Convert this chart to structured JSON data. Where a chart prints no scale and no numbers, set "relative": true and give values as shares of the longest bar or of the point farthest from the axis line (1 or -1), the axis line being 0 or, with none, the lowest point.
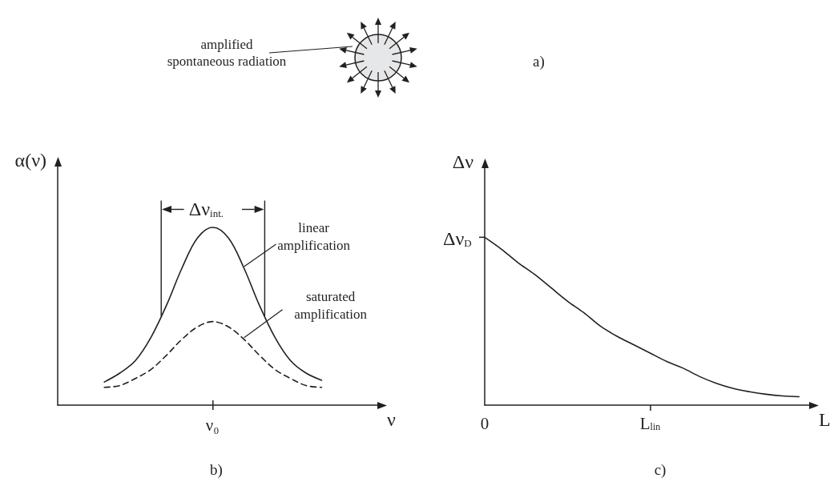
{
  "chart_data": [
    {
      "type": "other",
      "title": "a)",
      "annotations": [
        "amplified spontaneous radiation"
      ]
    },
    {
      "type": "line",
      "title": "b)",
      "xlabel": "ν",
      "ylabel": "α(ν)",
      "relative": true,
      "categories": [
        null,
        null,
        null,
        null,
        null,
        null,
        null,
        null,
        null,
        null,
        null,
        null,
        null,
        null,
        null,
        null,
        null,
        null,
        null,
        null,
        null,
        null
      ],
      "marker": "none",
      "annotations": [
        "Δν$_{int.}$",
        "ν₀"
      ],
      "series": [
        {
          "name": "linear amplification",
          "color": "#231f20",
          "line_style": "solid",
          "values": [
            null,
            null,
            null,
            0.13,
            0.18,
            0.25,
            0.38,
            0.56,
            0.77,
            0.94,
            1,
            0.94,
            0.77,
            0.56,
            0.38,
            0.25,
            0.18,
            0.14,
            null,
            null,
            null,
            null
          ]
        },
        {
          "name": "saturated amplification",
          "color": "#231f20",
          "line_style": "dashed",
          "values": [
            null,
            null,
            null,
            0.1,
            0.11,
            0.15,
            0.2,
            0.28,
            0.37,
            0.44,
            0.47,
            0.44,
            0.37,
            0.28,
            0.2,
            0.15,
            0.11,
            0.1,
            null,
            null,
            null,
            null
          ]
        }
      ]
    },
    {
      "type": "line",
      "title": "c)",
      "xlabel": "L",
      "ylabel": "Δν",
      "relative": true,
      "categories": [
        "0",
        null,
        null,
        null,
        null,
        null,
        null,
        null,
        null,
        null,
        "L$_{lin}$",
        null,
        null,
        null,
        null,
        null,
        null,
        null,
        null,
        null,
        null
      ],
      "marker": "none",
      "annotations": [
        {
          "text": "Δν$_{D}$",
          "x": "0",
          "y": 1
        }
      ],
      "series": [
        {
          "color": "#231f20",
          "values": [
            1,
            0.93,
            0.85,
            0.78,
            0.7,
            0.62,
            0.55,
            0.47,
            0.41,
            0.36,
            0.31,
            0.26,
            0.22,
            0.17,
            0.13,
            0.1,
            0.08,
            0.065,
            0.055,
            0.05,
            null
          ]
        }
      ]
    }
  ]
}
